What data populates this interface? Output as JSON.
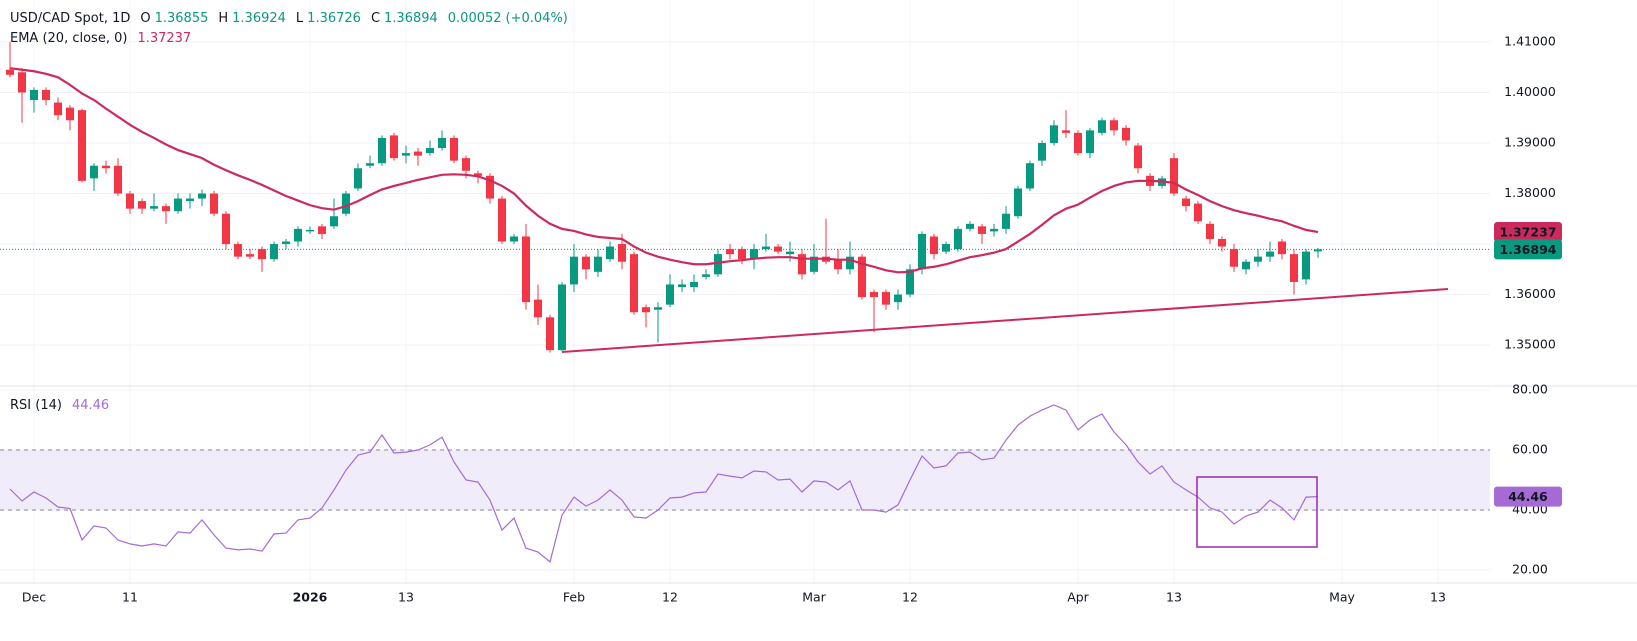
{
  "chart_data": [
    {
      "type": "candlestick",
      "title": "USD/CAD Spot, 1D",
      "ohlc_labels": [
        "O",
        "H",
        "L",
        "C"
      ],
      "change": 0.00052,
      "change_pct": {
        "value": 0.04,
        "label": "(+0.04%)"
      },
      "up_color": "#089981",
      "down_color": "#f23645",
      "grid": true,
      "ylim": [
        1.3421,
        1.4183
      ],
      "yticks": [
        {
          "value": 1.35,
          "label": "1.35000"
        },
        {
          "value": 1.36,
          "label": "1.36000"
        },
        {
          "value": 1.37,
          "label": "1.37000"
        },
        {
          "value": 1.38,
          "label": "1.38000"
        },
        {
          "value": 1.39,
          "label": "1.39000"
        },
        {
          "value": 1.4,
          "label": "1.40000"
        },
        {
          "value": 1.41,
          "label": "1.41000"
        }
      ],
      "categories": [
        null,
        null,
        "Dec",
        null,
        null,
        null,
        null,
        null,
        null,
        null,
        "11",
        null,
        null,
        null,
        null,
        null,
        null,
        null,
        null,
        null,
        null,
        null,
        null,
        null,
        null,
        "2026",
        null,
        null,
        null,
        null,
        null,
        null,
        null,
        "13",
        null,
        null,
        null,
        null,
        null,
        null,
        null,
        null,
        null,
        null,
        null,
        null,
        null,
        "Feb",
        null,
        null,
        null,
        null,
        null,
        null,
        null,
        "12",
        null,
        null,
        null,
        null,
        null,
        null,
        null,
        null,
        null,
        null,
        null,
        "Mar",
        null,
        null,
        null,
        null,
        null,
        null,
        null,
        "12",
        null,
        null,
        null,
        null,
        null,
        null,
        null,
        null,
        null,
        null,
        null,
        null,
        null,
        "Apr",
        null,
        null,
        null,
        null,
        null,
        null,
        null,
        "13",
        null,
        null,
        null,
        null,
        null,
        null,
        null,
        null,
        null,
        null,
        null,
        null,
        null,
        "May",
        null,
        null,
        null,
        null,
        null,
        null,
        null,
        "13"
      ],
      "open": [
        1.4045,
        1.404,
        1.3985,
        1.4005,
        1.398,
        1.397,
        1.3965,
        1.383,
        1.3855,
        1.3855,
        1.38,
        1.3785,
        1.377,
        1.3775,
        1.3765,
        1.3785,
        1.379,
        1.38,
        1.376,
        1.37,
        1.368,
        1.369,
        1.367,
        1.37,
        1.3705,
        1.3725,
        1.3735,
        1.3735,
        1.376,
        1.381,
        1.3855,
        1.386,
        1.3915,
        1.3875,
        1.3883,
        1.388,
        1.389,
        1.391,
        1.387,
        1.384,
        1.3835,
        1.379,
        1.3705,
        1.3715,
        1.359,
        1.3555,
        1.349,
        1.362,
        1.3675,
        1.3645,
        1.367,
        1.37,
        1.368,
        1.3575,
        1.357,
        1.358,
        1.3615,
        1.3615,
        1.3635,
        1.364,
        1.369,
        1.369,
        1.367,
        1.369,
        1.3695,
        1.368,
        1.368,
        1.3645,
        1.3675,
        1.367,
        1.365,
        1.3675,
        1.3605,
        1.3605,
        1.3585,
        1.36,
        1.365,
        1.3715,
        1.3685,
        1.369,
        1.373,
        1.3735,
        1.3725,
        1.373,
        1.3755,
        1.381,
        1.3865,
        1.39,
        1.3925,
        1.392,
        1.388,
        1.392,
        1.3945,
        1.393,
        1.3895,
        1.3835,
        1.3815,
        1.387,
        1.379,
        1.378,
        1.374,
        1.371,
        1.369,
        1.365,
        1.3665,
        1.3675,
        1.3705,
        1.368,
        1.363,
        1.36855,
        null,
        null,
        null,
        null,
        null,
        null,
        null,
        null,
        null,
        null
      ],
      "high": [
        1.41,
        1.4048,
        1.401,
        1.401,
        1.399,
        1.3975,
        1.3968,
        1.386,
        1.3865,
        1.387,
        1.3805,
        1.379,
        1.38,
        1.378,
        1.38,
        1.38,
        1.3808,
        1.3805,
        1.3765,
        1.3705,
        1.369,
        1.3695,
        1.3705,
        1.371,
        1.3735,
        1.3735,
        1.374,
        1.379,
        1.3805,
        1.386,
        1.3875,
        1.3915,
        1.392,
        1.3895,
        1.389,
        1.3905,
        1.3925,
        1.3915,
        1.3875,
        1.3845,
        1.384,
        1.3795,
        1.372,
        1.374,
        1.362,
        1.356,
        1.3625,
        1.37,
        1.368,
        1.369,
        1.3705,
        1.372,
        1.3685,
        1.358,
        1.3585,
        1.364,
        1.363,
        1.364,
        1.365,
        1.369,
        1.37,
        1.3695,
        1.37,
        1.372,
        1.37,
        1.3705,
        1.369,
        1.37,
        1.375,
        1.369,
        1.3705,
        1.368,
        1.361,
        1.361,
        1.361,
        1.366,
        1.3725,
        1.372,
        1.3705,
        1.3735,
        1.3745,
        1.374,
        1.374,
        1.3775,
        1.3815,
        1.3865,
        1.3905,
        1.3945,
        1.3965,
        1.3925,
        1.393,
        1.395,
        1.395,
        1.3935,
        1.39,
        1.384,
        1.3835,
        1.388,
        1.3795,
        1.3785,
        1.3745,
        1.3715,
        1.37,
        1.367,
        1.369,
        1.3705,
        1.371,
        1.369,
        1.369,
        1.36924,
        null,
        null,
        null,
        null,
        null,
        null,
        null,
        null,
        null,
        null
      ],
      "low": [
        1.403,
        1.394,
        1.396,
        1.3975,
        1.3945,
        1.3925,
        1.3822,
        1.3805,
        1.384,
        1.3795,
        1.376,
        1.376,
        1.3765,
        1.374,
        1.376,
        1.377,
        1.3775,
        1.3755,
        1.369,
        1.367,
        1.367,
        1.3645,
        1.3665,
        1.369,
        1.3695,
        1.372,
        1.371,
        1.373,
        1.3755,
        1.3805,
        1.385,
        1.3855,
        1.3865,
        1.386,
        1.3855,
        1.3875,
        1.3885,
        1.386,
        1.383,
        1.382,
        1.378,
        1.37,
        1.37,
        1.357,
        1.354,
        1.3485,
        1.3488,
        1.3605,
        1.363,
        1.3635,
        1.3665,
        1.365,
        1.356,
        1.3535,
        1.3505,
        1.3575,
        1.3605,
        1.3605,
        1.363,
        1.3635,
        1.367,
        1.366,
        1.365,
        1.3685,
        1.368,
        1.3665,
        1.363,
        1.364,
        1.366,
        1.364,
        1.364,
        1.359,
        1.3525,
        1.357,
        1.357,
        1.3595,
        1.364,
        1.367,
        1.368,
        1.3685,
        1.3725,
        1.37,
        1.3715,
        1.372,
        1.375,
        1.3805,
        1.3855,
        1.3895,
        1.391,
        1.3875,
        1.387,
        1.3915,
        1.3915,
        1.3895,
        1.384,
        1.3805,
        1.381,
        1.3795,
        1.3765,
        1.374,
        1.37,
        1.3685,
        1.3645,
        1.364,
        1.3655,
        1.3665,
        1.367,
        1.36,
        1.362,
        1.36726,
        null,
        null,
        null,
        null,
        null,
        null,
        null,
        null,
        null,
        null
      ],
      "close": [
        1.4035,
        1.4,
        1.4005,
        1.3985,
        1.3955,
        1.3945,
        1.3825,
        1.3855,
        1.385,
        1.38,
        1.377,
        1.377,
        1.3775,
        1.3765,
        1.379,
        1.379,
        1.38,
        1.376,
        1.37,
        1.3675,
        1.3675,
        1.367,
        1.37,
        1.3705,
        1.373,
        1.3728,
        1.372,
        1.3755,
        1.38,
        1.385,
        1.386,
        1.391,
        1.387,
        1.388,
        1.3875,
        1.389,
        1.391,
        1.3865,
        1.3845,
        1.3835,
        1.379,
        1.3705,
        1.3715,
        1.3585,
        1.3555,
        1.349,
        1.362,
        1.3675,
        1.365,
        1.3675,
        1.3695,
        1.3665,
        1.3565,
        1.3565,
        1.3575,
        1.362,
        1.362,
        1.3625,
        1.364,
        1.368,
        1.368,
        1.367,
        1.369,
        1.3695,
        1.3685,
        1.3685,
        1.364,
        1.3675,
        1.3665,
        1.365,
        1.3675,
        1.3595,
        1.3595,
        1.358,
        1.36,
        1.365,
        1.372,
        1.368,
        1.37,
        1.373,
        1.374,
        1.372,
        1.373,
        1.376,
        1.381,
        1.386,
        1.39,
        1.3935,
        1.392,
        1.388,
        1.3925,
        1.3945,
        1.3925,
        1.3905,
        1.385,
        1.3815,
        1.383,
        1.38,
        1.3775,
        1.3745,
        1.371,
        1.3695,
        1.3655,
        1.3665,
        1.3675,
        1.3685,
        1.368,
        1.3625,
        1.3685,
        1.36894,
        null,
        null,
        null,
        null,
        null,
        null,
        null,
        null,
        null,
        null
      ],
      "series": [
        {
          "name": "EMA (20, close, 0)",
          "color": "#cc2a5d",
          "values": [
            1.4048,
            1.4045,
            1.4042,
            1.4037,
            1.403,
            1.4015,
            1.3998,
            1.3985,
            1.3968,
            1.3952,
            1.3936,
            1.3922,
            1.391,
            1.3897,
            1.3886,
            1.3878,
            1.387,
            1.3857,
            1.3846,
            1.3836,
            1.3827,
            1.3817,
            1.3806,
            1.3795,
            1.3786,
            1.3777,
            1.3771,
            1.3768,
            1.3775,
            1.3785,
            1.3797,
            1.3808,
            1.3815,
            1.3821,
            1.3827,
            1.3832,
            1.3837,
            1.3838,
            1.3837,
            1.3834,
            1.3826,
            1.3815,
            1.38,
            1.3776,
            1.3756,
            1.374,
            1.373,
            1.3726,
            1.3719,
            1.3714,
            1.3712,
            1.371,
            1.3695,
            1.3683,
            1.3675,
            1.3669,
            1.3664,
            1.366,
            1.366,
            1.3663,
            1.3666,
            1.3668,
            1.3671,
            1.3673,
            1.3674,
            1.3674,
            1.3671,
            1.3671,
            1.3671,
            1.3669,
            1.3669,
            1.3661,
            1.3655,
            1.3648,
            1.3644,
            1.3645,
            1.3652,
            1.3655,
            1.366,
            1.3667,
            1.3674,
            1.3678,
            1.3683,
            1.369,
            1.3705,
            1.372,
            1.3738,
            1.3757,
            1.377,
            1.3778,
            1.3792,
            1.3805,
            1.3815,
            1.3822,
            1.3825,
            1.3825,
            1.3824,
            1.3821,
            1.3808,
            1.3797,
            1.3785,
            1.3775,
            1.3767,
            1.3761,
            1.3756,
            1.375,
            1.3745,
            1.3736,
            1.3728,
            1.37237,
            null,
            null,
            null,
            null,
            null,
            null,
            null,
            null,
            null,
            null
          ]
        }
      ]
    },
    {
      "type": "line",
      "grid": true,
      "ylim": [
        16,
        81
      ],
      "yticks": [
        {
          "value": 20,
          "label": "20.00"
        },
        {
          "value": 40,
          "label": "40.00"
        },
        {
          "value": 60,
          "label": "60.00"
        },
        {
          "value": 80,
          "label": "80.00"
        }
      ],
      "band": [
        40,
        60
      ],
      "band_color": "#f1ecfa",
      "series": [
        {
          "name": "RSI (14)",
          "color": "#a66ad6",
          "values": [
            47,
            43,
            46,
            44,
            41,
            40.5,
            30,
            34.7,
            34,
            30,
            28.7,
            28,
            28.7,
            28,
            32.7,
            32.3,
            36.7,
            31.7,
            27.3,
            26.7,
            27,
            26.3,
            32,
            32.3,
            36.7,
            37.3,
            40.7,
            46.7,
            53.3,
            58.3,
            59.3,
            65,
            59,
            59.3,
            60,
            61.7,
            64.3,
            56,
            50,
            49.3,
            43.3,
            33.3,
            37.3,
            27.3,
            26,
            22.7,
            38.3,
            44.3,
            41.3,
            43.3,
            46.7,
            43.3,
            37.7,
            37.3,
            40,
            44,
            44.3,
            45.7,
            46,
            52,
            51.3,
            50.7,
            53,
            52.7,
            50,
            50.3,
            46,
            49.7,
            49.3,
            46.7,
            49.7,
            40,
            40,
            39.3,
            41.7,
            50,
            58,
            54,
            54.7,
            59,
            59.3,
            56.7,
            57.3,
            63.3,
            68.3,
            71.3,
            73.3,
            75,
            73.3,
            66.7,
            70,
            72,
            66,
            61.7,
            56,
            52,
            54.7,
            49.3,
            46.7,
            44.3,
            40.7,
            39.3,
            35.3,
            38,
            39.3,
            43.3,
            40.7,
            36.7,
            44.3,
            44.46,
            null,
            null,
            null,
            null,
            null,
            null,
            null,
            null,
            null,
            null
          ]
        }
      ]
    }
  ]
}
